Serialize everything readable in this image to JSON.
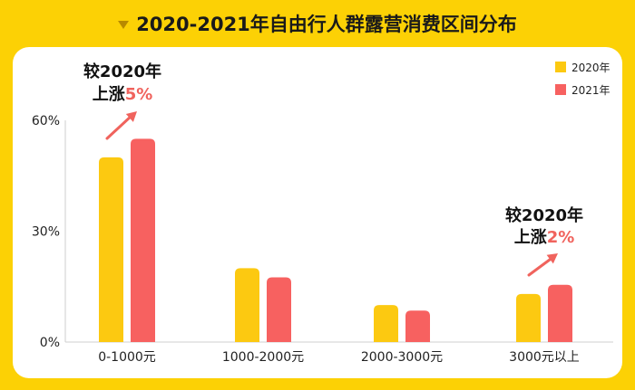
{
  "header": {
    "title": "2020-2021年自由行人群露营消费区间分布"
  },
  "chart_data": {
    "type": "bar",
    "title": "2020-2021年自由行人群露营消费区间分布",
    "categories": [
      "0-1000元",
      "1000-2000元",
      "2000-3000元",
      "3000元以上"
    ],
    "series": [
      {
        "name": "2020年",
        "values": [
          50,
          20,
          10,
          13
        ],
        "color": "#fcc911"
      },
      {
        "name": "2021年",
        "values": [
          55,
          17.5,
          8.5,
          15.5
        ],
        "color": "#f76160"
      }
    ],
    "ylim": [
      0,
      60
    ],
    "yticks": [
      "0%",
      "30%",
      "60%"
    ],
    "legend": {
      "position": "top-right",
      "items": [
        "2020年",
        "2021年"
      ]
    },
    "annotations": [
      {
        "category": "0-1000元",
        "line1": "较2020年",
        "line2_prefix": "上涨",
        "line2_value": "5%"
      },
      {
        "category": "3000元以上",
        "line1": "较2020年",
        "line2_prefix": "上涨",
        "line2_value": "2%"
      }
    ],
    "xlabel": "",
    "ylabel": ""
  }
}
